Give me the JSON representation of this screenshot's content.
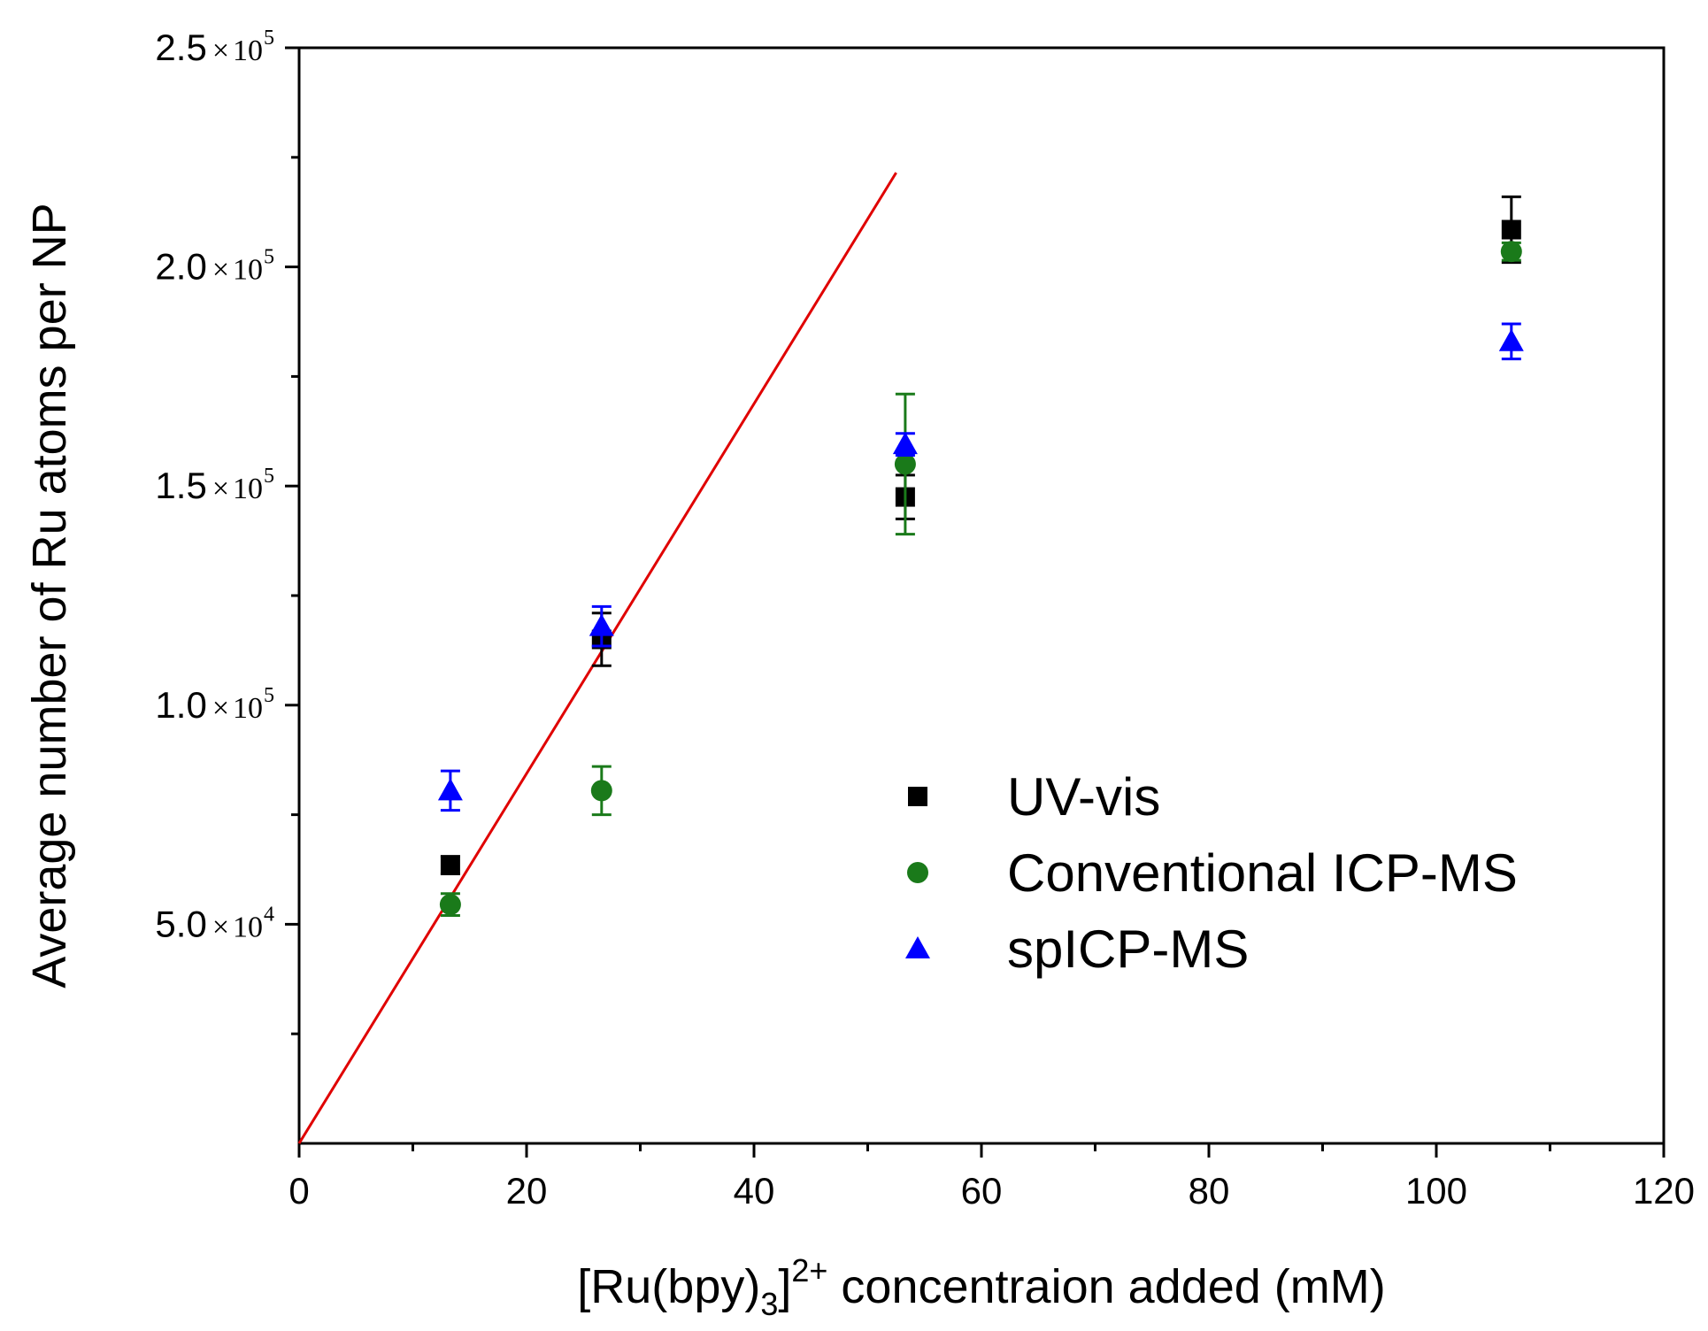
{
  "chart_data": {
    "type": "scatter",
    "title": "",
    "xlabel": {
      "prefix": "[Ru(bpy)",
      "sub": "3",
      "close": "]",
      "sup": "2+",
      "suffix": " concentraion added (mM)"
    },
    "ylabel": "Average number of Ru atoms per NP",
    "xlim": [
      0,
      120
    ],
    "ylim": [
      0,
      250000
    ],
    "x_ticks": [
      {
        "value": 0,
        "label": "0"
      },
      {
        "value": 20,
        "label": "20"
      },
      {
        "value": 40,
        "label": "40"
      },
      {
        "value": 60,
        "label": "60"
      },
      {
        "value": 80,
        "label": "80"
      },
      {
        "value": 100,
        "label": "100"
      },
      {
        "value": 120,
        "label": "120"
      }
    ],
    "x_minor_ticks": [
      10,
      30,
      50,
      70,
      90,
      110
    ],
    "y_ticks": [
      {
        "value": 50000,
        "mantissa": "5.0",
        "times": "×",
        "base": "10",
        "exp": "4"
      },
      {
        "value": 100000,
        "mantissa": "1.0",
        "times": "×",
        "base": "10",
        "exp": "5"
      },
      {
        "value": 150000,
        "mantissa": "1.5",
        "times": "×",
        "base": "10",
        "exp": "5"
      },
      {
        "value": 200000,
        "mantissa": "2.0",
        "times": "×",
        "base": "10",
        "exp": "5"
      },
      {
        "value": 250000,
        "mantissa": "2.5",
        "times": "×",
        "base": "10",
        "exp": "5"
      }
    ],
    "y_minor_ticks": [
      25000,
      75000,
      125000,
      175000,
      225000
    ],
    "series": [
      {
        "name": "UV-vis",
        "marker": "square",
        "color": "#000000",
        "points": [
          {
            "x": 13.3,
            "y": 63500,
            "err": 2000
          },
          {
            "x": 26.6,
            "y": 115000,
            "err": 6000
          },
          {
            "x": 53.3,
            "y": 147500,
            "err": 5000
          },
          {
            "x": 106.6,
            "y": 208500,
            "err": 7500
          }
        ]
      },
      {
        "name": "Conventional ICP-MS",
        "marker": "circle",
        "color": "#1a7a1a",
        "points": [
          {
            "x": 13.3,
            "y": 54500,
            "err": 2500
          },
          {
            "x": 26.6,
            "y": 80500,
            "err": 5500
          },
          {
            "x": 53.3,
            "y": 155000,
            "err": 16000
          },
          {
            "x": 106.6,
            "y": 203500,
            "err": 2000
          }
        ]
      },
      {
        "name": "spICP-MS",
        "marker": "triangle",
        "color": "#0000ff",
        "points": [
          {
            "x": 13.3,
            "y": 80500,
            "err": 4500
          },
          {
            "x": 26.6,
            "y": 118000,
            "err": 4500
          },
          {
            "x": 53.3,
            "y": 159500,
            "err": 2500
          },
          {
            "x": 106.6,
            "y": 183000,
            "err": 4000
          }
        ]
      }
    ],
    "fit_line": {
      "color": "#e00000",
      "x": [
        0,
        52.5
      ],
      "y": [
        0,
        221500
      ]
    },
    "legend": {
      "placement": "center-right",
      "entries": [
        "UV-vis",
        "Conventional ICP-MS",
        "spICP-MS"
      ]
    },
    "grid": false
  }
}
